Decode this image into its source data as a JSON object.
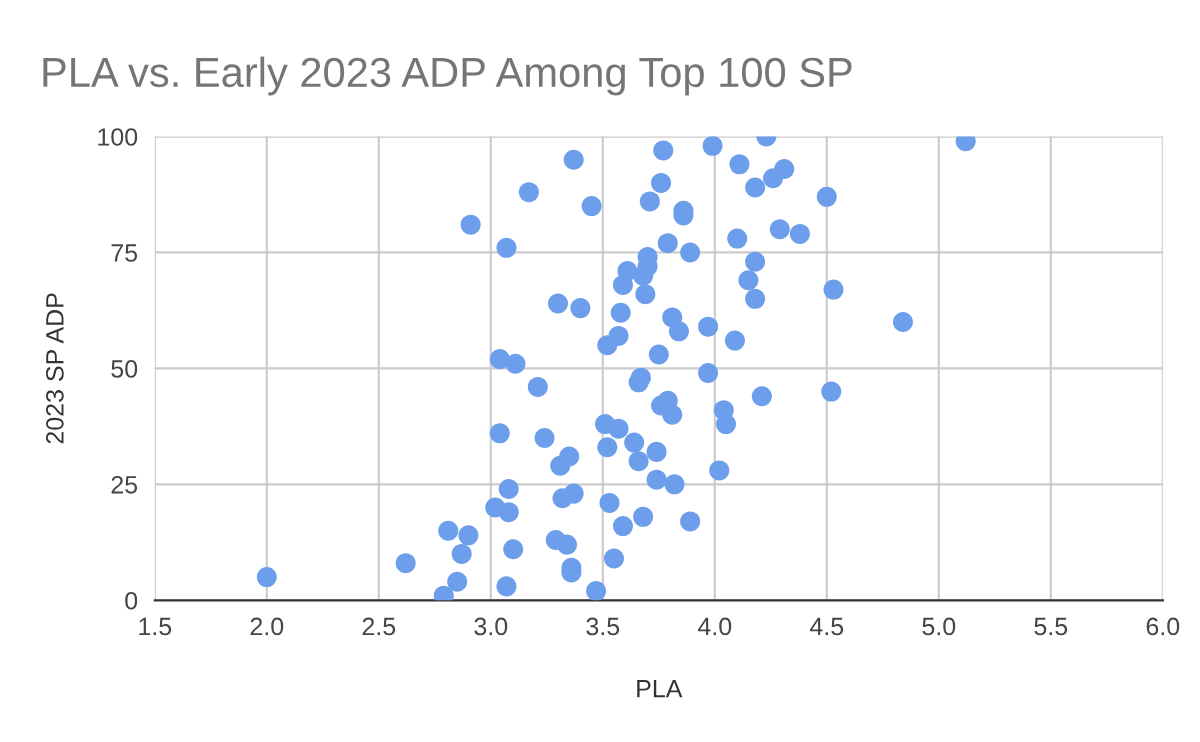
{
  "chart_data": {
    "type": "scatter",
    "title": "PLA vs. Early 2023 ADP Among Top 100 SP",
    "xlabel": "PLA",
    "ylabel": "2023 SP ADP",
    "xlim": [
      1.5,
      6.0
    ],
    "xticks": [
      1.5,
      {
        "value": 2,
        "label": "2.0"
      },
      2.5,
      {
        "value": 3,
        "label": "3.0"
      },
      3.5,
      {
        "value": 4,
        "label": "4.0"
      },
      4.5,
      {
        "value": 5,
        "label": "5.0"
      },
      5.5,
      {
        "value": 6,
        "label": "6.0"
      }
    ],
    "ylim": [
      0,
      100
    ],
    "yticks": [
      0,
      25,
      50,
      75,
      100
    ],
    "grid": true,
    "legend": false,
    "marker": "circle",
    "series": [
      {
        "color": "#6d9eeb",
        "x": [
          2.0,
          2.62,
          2.81,
          2.9,
          2.87,
          2.85,
          2.79,
          2.91,
          3.07,
          3.17,
          3.04,
          3.11,
          3.21,
          3.04,
          3.08,
          3.02,
          3.08,
          3.1,
          3.07,
          3.37,
          3.45,
          3.77,
          3.99,
          4.23,
          4.11,
          4.31,
          4.26,
          4.18,
          3.76,
          3.71,
          3.86,
          3.86,
          4.5,
          4.29,
          4.38,
          4.1,
          3.79,
          3.89,
          3.7,
          3.7,
          3.61,
          3.68,
          4.18,
          4.15,
          3.59,
          3.69,
          4.18,
          3.3,
          3.4,
          4.53,
          3.58,
          3.81,
          3.84,
          3.97,
          3.57,
          3.52,
          4.09,
          3.75,
          3.97,
          5.12,
          4.84,
          4.52,
          3.67,
          3.66,
          4.21,
          3.76,
          3.79,
          3.81,
          4.04,
          4.05,
          3.24,
          3.51,
          3.57,
          3.35,
          3.31,
          3.64,
          3.52,
          3.74,
          3.66,
          4.02,
          3.74,
          3.82,
          3.37,
          3.32,
          3.53,
          3.68,
          3.59,
          3.89,
          3.29,
          3.34,
          3.55,
          3.36,
          3.36,
          3.47
        ],
        "values": [
          5,
          8,
          15,
          14,
          10,
          4,
          1,
          81,
          76,
          88,
          52,
          51,
          46,
          36,
          24,
          20,
          19,
          11,
          3,
          95,
          85,
          97,
          98,
          100,
          94,
          93,
          91,
          89,
          90,
          86,
          84,
          83,
          87,
          80,
          79,
          78,
          77,
          75,
          74,
          72,
          71,
          70,
          73,
          69,
          68,
          66,
          65,
          64,
          63,
          67,
          62,
          61,
          58,
          59,
          57,
          55,
          56,
          53,
          49,
          99,
          60,
          45,
          48,
          47,
          44,
          42,
          43,
          40,
          41,
          38,
          35,
          38,
          37,
          31,
          29,
          34,
          33,
          32,
          30,
          28,
          26,
          25,
          23,
          22,
          21,
          18,
          16,
          17,
          13,
          12,
          9,
          7,
          6,
          2
        ]
      }
    ]
  }
}
